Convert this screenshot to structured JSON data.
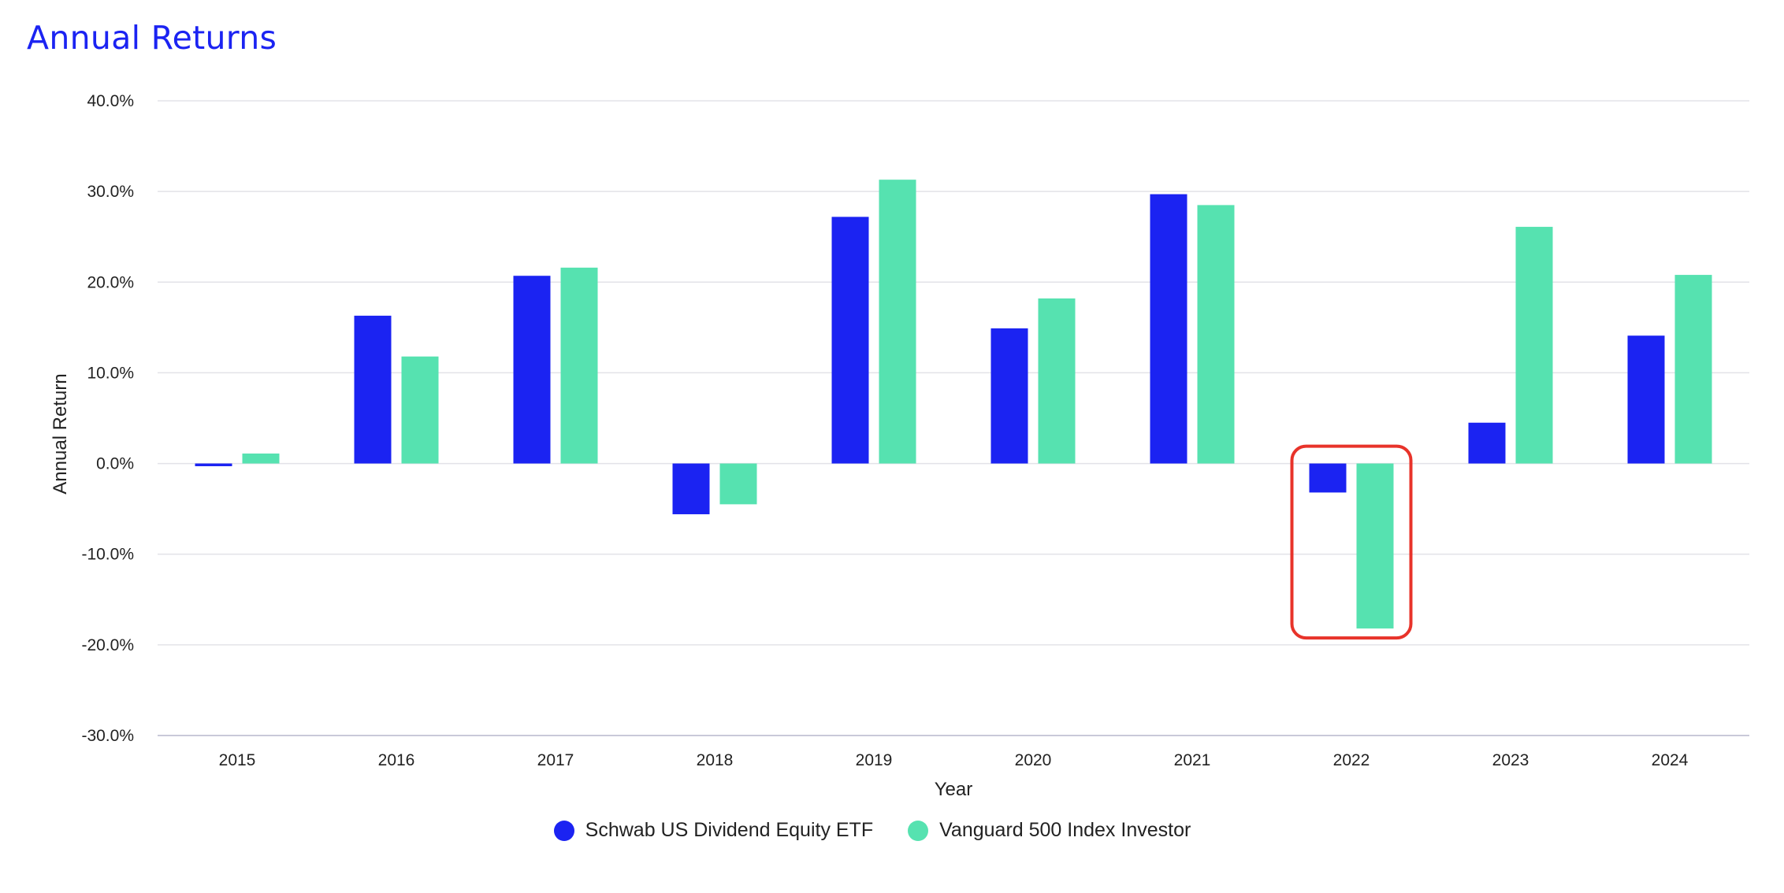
{
  "title": "Annual Returns",
  "colors": {
    "series1": "#1b23f2",
    "series2": "#56e2b0",
    "grid": "#e3e3e8",
    "axis": "#c9c9d9",
    "highlight": "#e8332a"
  },
  "chart_data": {
    "type": "bar",
    "xlabel": "Year",
    "ylabel": "Annual Return",
    "ylim": [
      -30,
      40
    ],
    "yticks": [
      40,
      30,
      20,
      10,
      0,
      -10,
      -20,
      -30
    ],
    "ytick_labels": [
      "40.0%",
      "30.0%",
      "20.0%",
      "10.0%",
      "0.0%",
      "-10.0%",
      "-20.0%",
      "-30.0%"
    ],
    "grid": true,
    "legend_position": "bottom-center",
    "categories": [
      "2015",
      "2016",
      "2017",
      "2018",
      "2019",
      "2020",
      "2021",
      "2022",
      "2023",
      "2024"
    ],
    "series": [
      {
        "name": "Schwab US Dividend Equity ETF",
        "color": "#1b23f2",
        "values": [
          -0.3,
          16.3,
          20.7,
          -5.6,
          27.2,
          14.9,
          29.7,
          -3.2,
          4.5,
          14.1
        ]
      },
      {
        "name": "Vanguard 500 Index Investor",
        "color": "#56e2b0",
        "values": [
          1.1,
          11.8,
          21.6,
          -4.5,
          31.3,
          18.2,
          28.5,
          -18.2,
          26.1,
          20.8
        ]
      }
    ],
    "highlight": {
      "category": "2022",
      "style": "red rounded rectangle"
    }
  }
}
